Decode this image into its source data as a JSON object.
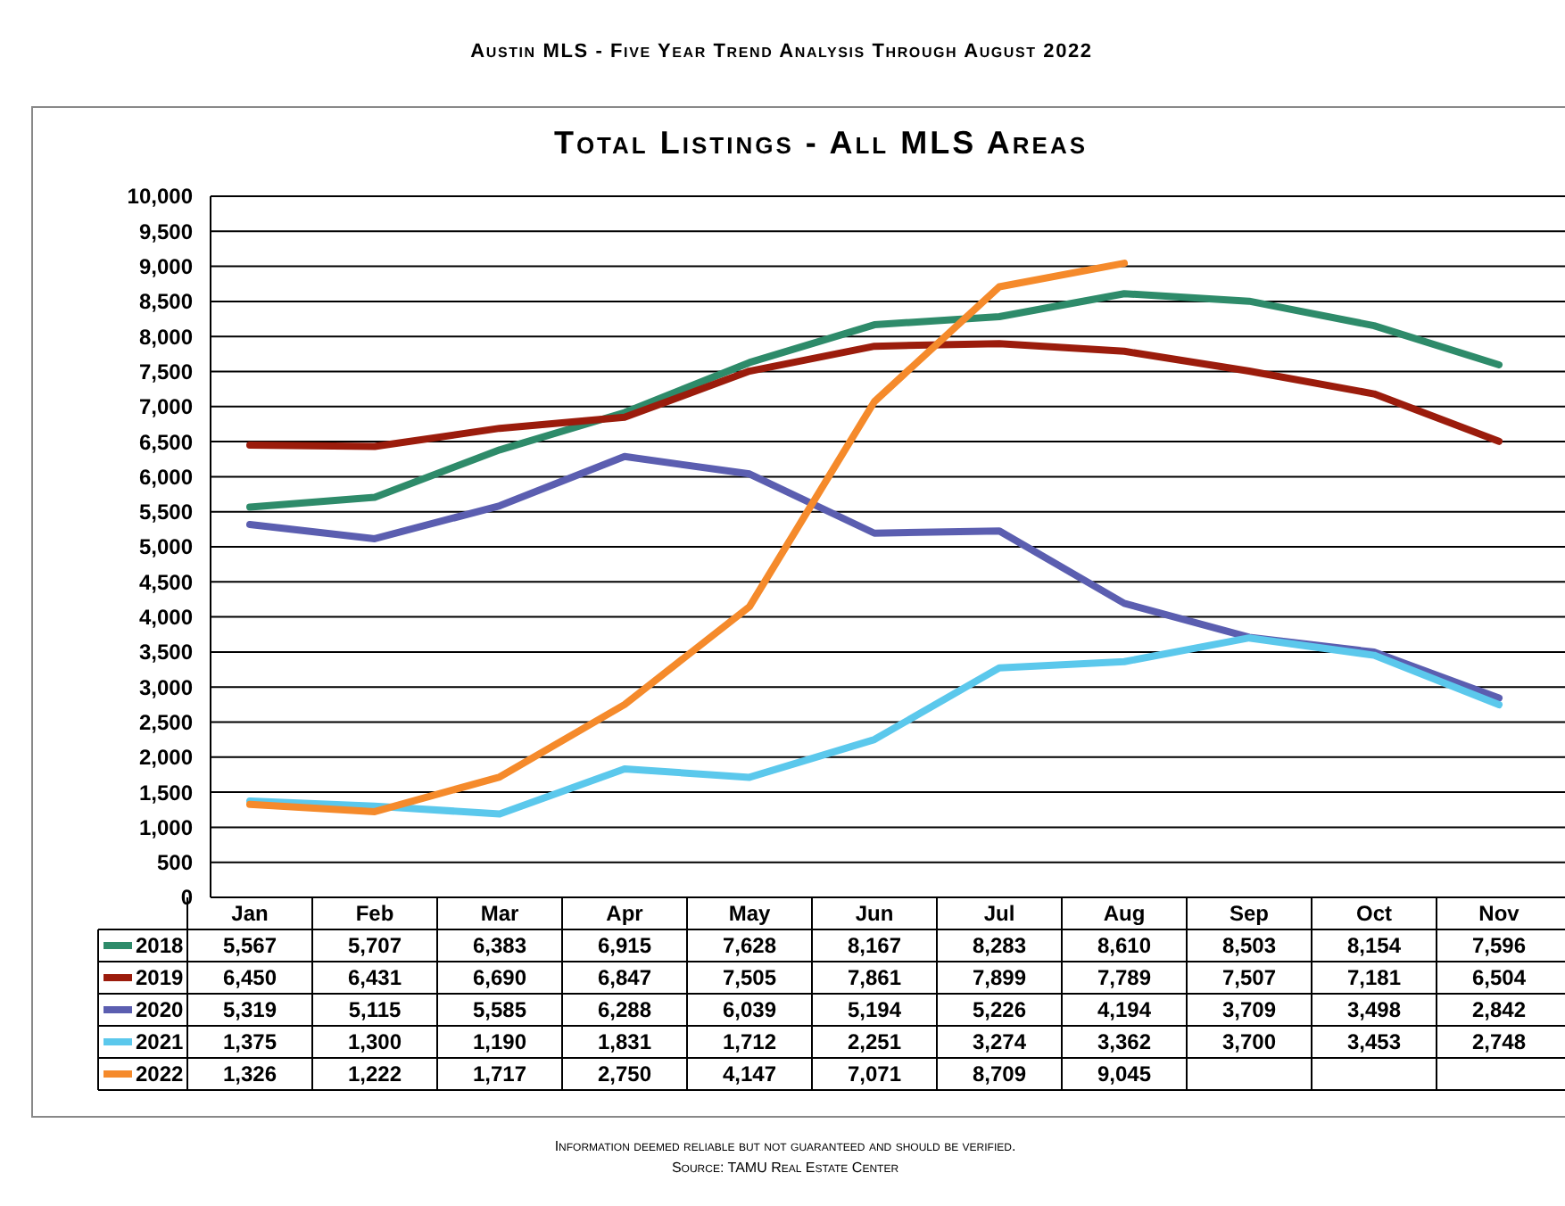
{
  "chart_data": {
    "type": "line",
    "title": "Total Listings - All MLS Areas",
    "subtitle": "Austin MLS - Five Year Trend Analysis Through August 2022",
    "categories": [
      "Jan",
      "Feb",
      "Mar",
      "Apr",
      "May",
      "Jun",
      "Jul",
      "Aug",
      "Sep",
      "Oct",
      "Nov"
    ],
    "ylim": [
      0,
      10000
    ],
    "yticks": [
      {
        "value": 0,
        "label": "0"
      },
      {
        "value": 500,
        "label": "500"
      },
      {
        "value": 1000,
        "label": "1,000"
      },
      {
        "value": 1500,
        "label": "1,500"
      },
      {
        "value": 2000,
        "label": "2,000"
      },
      {
        "value": 2500,
        "label": "2,500"
      },
      {
        "value": 3000,
        "label": "3,000"
      },
      {
        "value": 3500,
        "label": "3,500"
      },
      {
        "value": 4000,
        "label": "4,000"
      },
      {
        "value": 4500,
        "label": "4,500"
      },
      {
        "value": 5000,
        "label": "5,000"
      },
      {
        "value": 5500,
        "label": "5,500"
      },
      {
        "value": 6000,
        "label": "6,000"
      },
      {
        "value": 6500,
        "label": "6,500"
      },
      {
        "value": 7000,
        "label": "7,000"
      },
      {
        "value": 7500,
        "label": "7,500"
      },
      {
        "value": 8000,
        "label": "8,000"
      },
      {
        "value": 8500,
        "label": "8,500"
      },
      {
        "value": 9000,
        "label": "9,000"
      },
      {
        "value": 9500,
        "label": "9,500"
      },
      {
        "value": 10000,
        "label": "10,000"
      }
    ],
    "grid": "y",
    "legend": "bottom",
    "marker": "none",
    "line_style": "solid",
    "series": [
      {
        "name": "2018",
        "color": "#2e8b6a",
        "values": [
          5567,
          5707,
          6383,
          6915,
          7628,
          8167,
          8283,
          8610,
          8503,
          8154,
          7596
        ],
        "value_labels": [
          "5,567",
          "5,707",
          "6,383",
          "6,915",
          "7,628",
          "8,167",
          "8,283",
          "8,610",
          "8,503",
          "8,154",
          "7,596"
        ]
      },
      {
        "name": "2019",
        "color": "#9b1c0c",
        "values": [
          6450,
          6431,
          6690,
          6847,
          7505,
          7861,
          7899,
          7789,
          7507,
          7181,
          6504
        ],
        "value_labels": [
          "6,450",
          "6,431",
          "6,690",
          "6,847",
          "7,505",
          "7,861",
          "7,899",
          "7,789",
          "7,507",
          "7,181",
          "6,504"
        ]
      },
      {
        "name": "2020",
        "color": "#5b5eb0",
        "values": [
          5319,
          5115,
          5585,
          6288,
          6039,
          5194,
          5226,
          4194,
          3709,
          3498,
          2842
        ],
        "value_labels": [
          "5,319",
          "5,115",
          "5,585",
          "6,288",
          "6,039",
          "5,194",
          "5,226",
          "4,194",
          "3,709",
          "3,498",
          "2,842"
        ]
      },
      {
        "name": "2021",
        "color": "#5bc8ec",
        "values": [
          1375,
          1300,
          1190,
          1831,
          1712,
          2251,
          3274,
          3362,
          3700,
          3453,
          2748
        ],
        "value_labels": [
          "1,375",
          "1,300",
          "1,190",
          "1,831",
          "1,712",
          "2,251",
          "3,274",
          "3,362",
          "3,700",
          "3,453",
          "2,748"
        ]
      },
      {
        "name": "2022",
        "color": "#f58a2b",
        "values": [
          1326,
          1222,
          1717,
          2750,
          4147,
          7071,
          8709,
          9045,
          null,
          null,
          null
        ],
        "value_labels": [
          "1,326",
          "1,222",
          "1,717",
          "2,750",
          "4,147",
          "7,071",
          "8,709",
          "9,045",
          null,
          null,
          null
        ]
      }
    ],
    "annotations": [
      "Information deemed reliable but not guaranteed and should be verified.",
      "Source: TAMU Real Estate Center"
    ]
  }
}
